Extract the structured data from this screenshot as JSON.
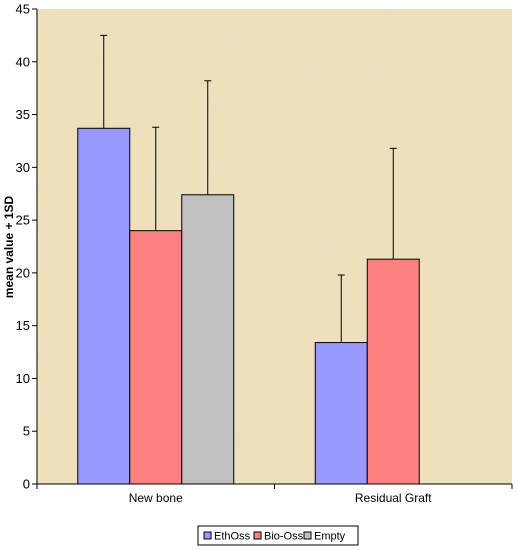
{
  "chart_data": {
    "type": "bar",
    "categories": [
      "New bone",
      "Residual Graft"
    ],
    "series": [
      {
        "name": "EthOss",
        "values": [
          33.7,
          13.4
        ],
        "errors": [
          8.8,
          6.4
        ],
        "color": "#9999FF"
      },
      {
        "name": "Bio-Oss",
        "values": [
          24.0,
          21.3
        ],
        "errors": [
          9.8,
          10.5
        ],
        "color": "#FF8080"
      },
      {
        "name": "Empty",
        "values": [
          27.4,
          null
        ],
        "errors": [
          10.8,
          null
        ],
        "color": "#C0C0C0"
      }
    ],
    "ylabel": "mean value + 1SD",
    "ylim": [
      0,
      45
    ],
    "yticks": [
      0,
      5,
      10,
      15,
      20,
      25,
      30,
      35,
      40,
      45
    ],
    "legend_position": "bottom",
    "plot_background": "#E8D8B0"
  }
}
